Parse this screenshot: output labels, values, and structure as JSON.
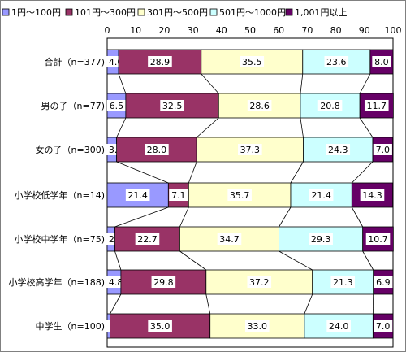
{
  "chart_data": {
    "type": "bar",
    "stacked": true,
    "orientation": "horizontal",
    "percent": true,
    "xlim": [
      0,
      100
    ],
    "x_ticks": [
      "0",
      "10",
      "20",
      "30",
      "40",
      "50",
      "60",
      "70",
      "80",
      "90",
      "100"
    ],
    "legend_position": "top",
    "grid": false,
    "categories": [
      "合計（n=377)",
      "男の子（n=77)",
      "女の子（n=300)",
      "小学校低学年（n=14)",
      "小学校中学年（n=75)",
      "小学校高学年（n=188)",
      "中学生（n=100)"
    ],
    "series": [
      {
        "name": "1円～100円",
        "color": "#9999ff",
        "values": [
          4.0,
          6.5,
          3.3,
          21.4,
          2.7,
          4.8,
          1.0
        ]
      },
      {
        "name": "101円～300円",
        "color": "#993366",
        "values": [
          28.9,
          32.5,
          28.0,
          7.1,
          22.7,
          29.8,
          35.0
        ]
      },
      {
        "name": "301円～500円",
        "color": "#ffffcc",
        "values": [
          35.5,
          28.6,
          37.3,
          35.7,
          34.7,
          37.2,
          33.0
        ]
      },
      {
        "name": "501円～1000円",
        "color": "#ccffff",
        "values": [
          23.6,
          20.8,
          24.3,
          21.4,
          29.3,
          21.3,
          24.0
        ]
      },
      {
        "name": "1,001円以上",
        "color": "#660066",
        "values": [
          8.0,
          11.7,
          7.0,
          14.3,
          10.7,
          6.9,
          7.0
        ]
      }
    ],
    "labels": [
      [
        "4.0",
        "28.9",
        "35.5",
        "23.6",
        "8.0"
      ],
      [
        "6.5",
        "32.5",
        "28.6",
        "20.8",
        "11.7"
      ],
      [
        "3.3",
        "28.0",
        "37.3",
        "24.3",
        "7.0"
      ],
      [
        "21.4",
        "7.1",
        "35.7",
        "21.4",
        "14.3"
      ],
      [
        "2.7",
        "22.7",
        "34.7",
        "29.3",
        "10.7"
      ],
      [
        "4.8",
        "29.8",
        "37.2",
        "21.3",
        "6.9"
      ],
      [
        "1.0",
        "35.0",
        "33.0",
        "24.0",
        "7.0"
      ]
    ]
  }
}
